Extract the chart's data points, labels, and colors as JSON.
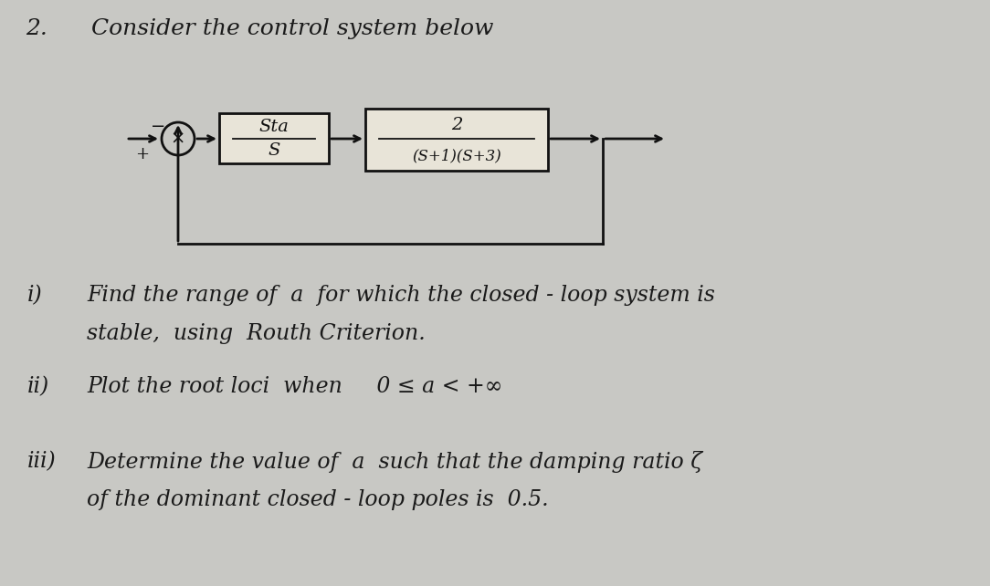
{
  "background_color": "#c8c8c4",
  "title_number": "2.",
  "title_text": "Consider the control system below",
  "block1_top": "Sta",
  "block1_bot": "S",
  "block2_top": "2",
  "block2_bot": "(S+1)(S+3)",
  "q1_marker": "i)",
  "q1_line1": "Find the range of  a  for which the closed - loop system is",
  "q1_line2": "stable,  using  Routh Criterion.",
  "q2_marker": "ii)",
  "q2_line": "Plot the root loci  when     0 ≤ a < +∞",
  "q3_marker": "iii)",
  "q3_line1": "Determine the value of  a  such that the damping ratio ζ",
  "q3_line2": "of the dominant closed - loop poles is  0.5.",
  "text_color": "#1a1a1a",
  "diagram_color": "#111111",
  "font_size_title": 18,
  "font_size_body": 17
}
